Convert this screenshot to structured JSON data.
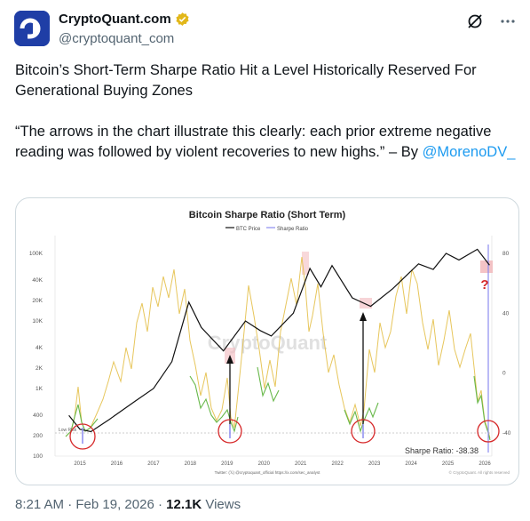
{
  "author": {
    "name": "CryptoQuant.com",
    "handle": "@cryptoquant_com",
    "avatar_text": "CQ",
    "brand_color": "#1f3ea6"
  },
  "header_icons": [
    "grok-icon",
    "more-icon"
  ],
  "tweet": {
    "headline": "Bitcoin’s Short-Term Sharpe Ratio Hit a Level Historically Reserved For Generational Buying Zones",
    "quote": "“The arrows in the chart illustrate this clearly: each prior extreme negative reading was followed by violent recoveries to new highs.” – By ",
    "mention": "@MorenoDV_"
  },
  "meta": {
    "time": "8:21 AM",
    "date": "Feb 19, 2026",
    "views_count": "12.1K",
    "views_label": "Views"
  },
  "chart_data": {
    "type": "line",
    "title": "Bitcoin Sharpe Ratio (Short Term)",
    "legend": [
      {
        "name": "BTC Price",
        "color": "#111111"
      },
      {
        "name": "Sharpe Ratio",
        "color": "#8c8cf0"
      }
    ],
    "legend_placement": "top-center",
    "watermark": "CryptoQuant",
    "x_ticks": [
      "2015",
      "2016",
      "2017",
      "2018",
      "2019",
      "2020",
      "2021",
      "2022",
      "2023",
      "2024",
      "2025",
      "2026"
    ],
    "y_left_ticks": [
      "100K",
      "40K",
      "20K",
      "10K",
      "4K",
      "2K",
      "1K",
      "400",
      "200",
      "100"
    ],
    "y_left_scale": "log",
    "y_right_ticks": [
      "80",
      "40",
      "0",
      "-40"
    ],
    "low_risk_label": "Low Risk",
    "sharpe_label": "Sharpe Ratio: -38.38",
    "question_mark": "?",
    "footer_left": "Twitter: (𝕏) @cryptoquant_official  https://x.com/sec_analyst",
    "footer_right": "© CryptoQuant. All rights reserved",
    "series": [
      {
        "name": "BTC Price",
        "x": [
          2014.7,
          2015.0,
          2015.3,
          2015.8,
          2016.5,
          2017.0,
          2017.5,
          2017.96,
          2018.3,
          2018.9,
          2019.5,
          2019.9,
          2020.2,
          2020.8,
          2021.25,
          2021.55,
          2021.85,
          2022.4,
          2022.9,
          2023.5,
          2024.2,
          2024.6,
          2024.95,
          2025.3,
          2025.8,
          2026.13
        ],
        "y": [
          400,
          250,
          230,
          350,
          650,
          1000,
          2500,
          19000,
          8000,
          3600,
          10000,
          7200,
          6000,
          13000,
          60000,
          32000,
          66000,
          22000,
          16500,
          30000,
          70000,
          58000,
          100000,
          80000,
          115000,
          67000
        ]
      }
    ],
    "extreme_zones": [
      {
        "label": "2015",
        "circle": true,
        "arrow": false
      },
      {
        "label": "2019",
        "circle": true,
        "arrow": true
      },
      {
        "label": "2022",
        "circle": true,
        "arrow": true
      },
      {
        "label": "2026",
        "circle": true,
        "arrow": false
      }
    ]
  }
}
